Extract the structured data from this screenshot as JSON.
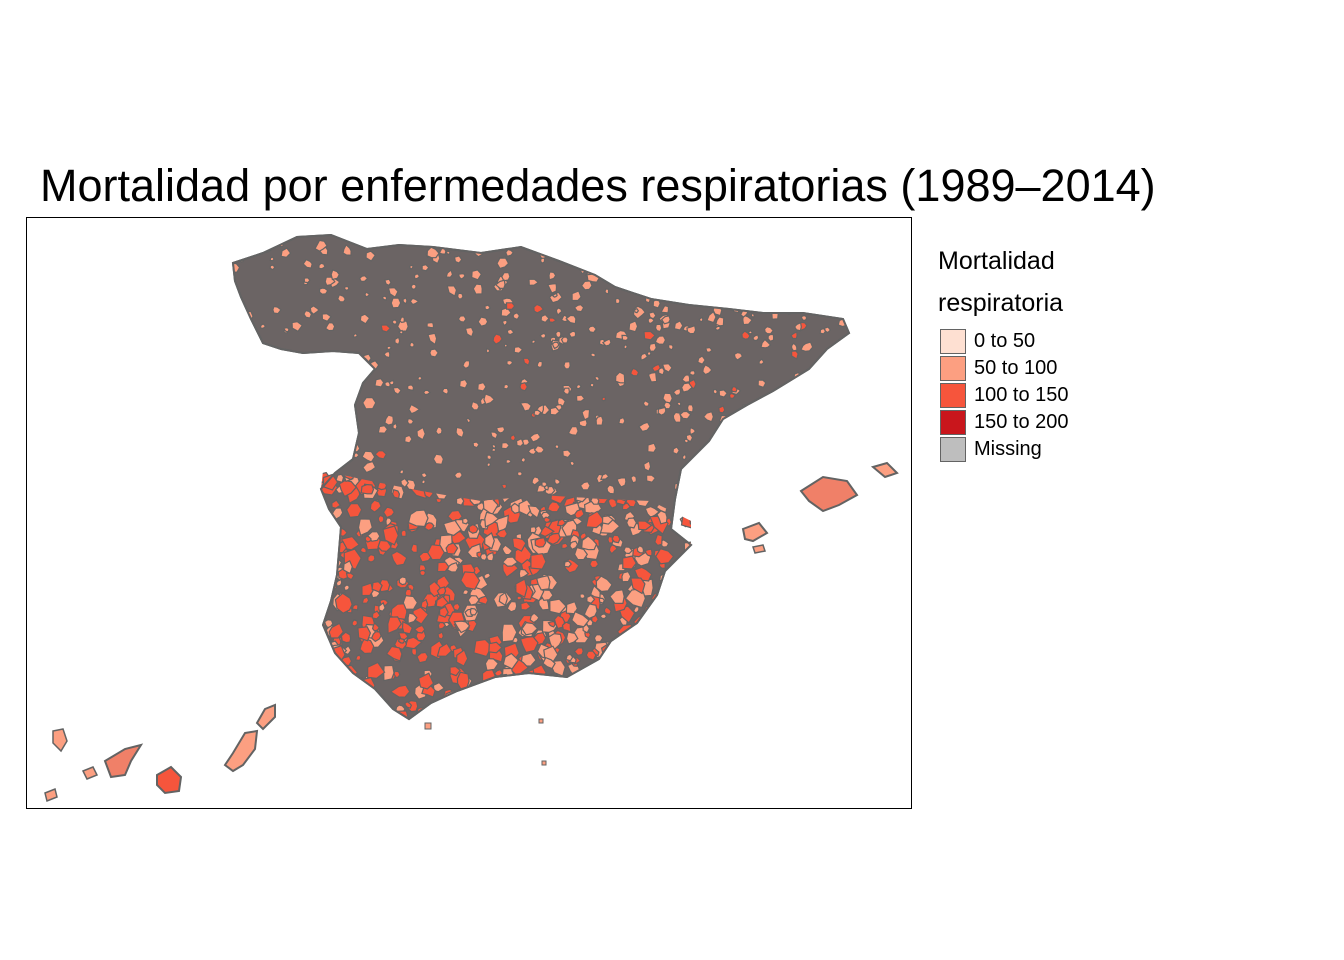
{
  "title": "Mortalidad por enfermedades respiratorias (1989–2014)",
  "legend": {
    "title_line1": "Mortalidad",
    "title_line2": "respiratoria",
    "items": [
      {
        "label": "0 to 50",
        "color": "#fee0d2"
      },
      {
        "label": "50 to 100",
        "color": "#fc9f81"
      },
      {
        "label": "100 to 150",
        "color": "#f6553c"
      },
      {
        "label": "150 to 200",
        "color": "#c9161c"
      },
      {
        "label": "Missing",
        "color": "#bebebe"
      }
    ]
  },
  "map": {
    "border_color": "#636363",
    "regions": [
      "Peninsula",
      "Islas Baleares",
      "Islas Canarias",
      "Ceuta",
      "Melilla"
    ]
  }
}
